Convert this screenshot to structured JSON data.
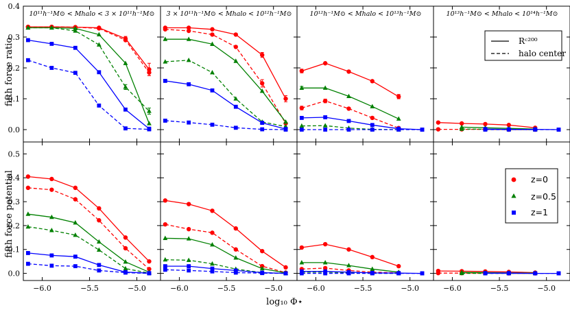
{
  "figure": {
    "xlabel": "log₁₀ Φ⋆",
    "row_ylabels": [
      "fifth force ratio",
      "fifth force potential"
    ],
    "column_titles": [
      "10¹¹h⁻¹M⊙ < Mhalo < 3 × 10¹¹h⁻¹M⊙",
      "3 × 10¹¹h⁻¹M⊙ < Mhalo < 10¹²h⁻¹M⊙",
      "10¹²h⁻¹M⊙ < Mhalo < 10¹³h⁻¹M⊙",
      "10¹³h⁻¹M⊙ < Mhalo < 10¹⁴h⁻¹M⊙"
    ],
    "x_ticks": [
      "−6.0",
      "−5.5",
      "−5.0"
    ],
    "x_tick_values": [
      -6.0,
      -5.5,
      -5.0
    ],
    "top_y_ticks": [
      "0.0",
      "0.1",
      "0.2",
      "0.3",
      "0.4"
    ],
    "top_y_tick_values": [
      0.0,
      0.1,
      0.2,
      0.3,
      0.4
    ],
    "bottom_y_ticks": [
      "0.0",
      "0.1",
      "0.2",
      "0.3",
      "0.4",
      "0.5"
    ],
    "bottom_y_tick_values": [
      0.0,
      0.1,
      0.2,
      0.3,
      0.4,
      0.5
    ],
    "legend_linestyle": [
      {
        "label": "Rᶜ²⁰⁰",
        "style": "solid"
      },
      {
        "label": "halo center",
        "style": "dashed"
      }
    ],
    "legend_redshift": [
      {
        "label": "z=0",
        "color": "#ff0000",
        "marker": "circle"
      },
      {
        "label": "z=0.5",
        "color": "#008000",
        "marker": "triangle"
      },
      {
        "label": "z=1",
        "color": "#0000ff",
        "marker": "square"
      }
    ]
  },
  "chart_data": {
    "type": "line",
    "layout": {
      "rows": 2,
      "cols": 4
    },
    "xlim": [
      -6.2,
      -4.75
    ],
    "x": [
      -6.15,
      -5.9,
      -5.65,
      -5.4,
      -5.12,
      -4.87
    ],
    "colors": {
      "z=0": "#ff0000",
      "z=0.5": "#008000",
      "z=1": "#0000ff"
    },
    "panels": [
      {
        "row": 0,
        "col": 0,
        "ylabel": "fifth force ratio",
        "ylim": [
          -0.04,
          0.4
        ],
        "series": [
          {
            "z": "z=0",
            "style": "solid",
            "values": [
              0.333,
              0.333,
              0.332,
              0.33,
              0.295,
              0.195
            ],
            "errors": [
              0,
              0,
              0,
              0,
              0.007,
              0.02
            ]
          },
          {
            "z": "z=0",
            "style": "dashed",
            "values": [
              0.333,
              0.333,
              0.332,
              0.328,
              0.29,
              0.185
            ],
            "errors": [
              0,
              0,
              0,
              0,
              0,
              0.01
            ]
          },
          {
            "z": "z=0.5",
            "style": "solid",
            "values": [
              0.33,
              0.33,
              0.328,
              0.308,
              0.215,
              0.02
            ],
            "errors": [
              0,
              0,
              0,
              0,
              0,
              0
            ]
          },
          {
            "z": "z=0.5",
            "style": "dashed",
            "values": [
              0.33,
              0.33,
              0.32,
              0.275,
              0.138,
              0.06
            ],
            "errors": [
              0,
              0,
              0,
              0,
              0.008,
              0.01
            ]
          },
          {
            "z": "z=1",
            "style": "solid",
            "values": [
              0.29,
              0.278,
              0.265,
              0.186,
              0.065,
              0.003
            ],
            "errors": [
              0,
              0,
              0,
              0,
              0,
              0
            ]
          },
          {
            "z": "z=1",
            "style": "dashed",
            "values": [
              0.225,
              0.2,
              0.184,
              0.078,
              0.004,
              0.001
            ],
            "errors": [
              0,
              0,
              0,
              0,
              0,
              0
            ]
          }
        ]
      },
      {
        "row": 0,
        "col": 1,
        "ylim": [
          -0.04,
          0.4
        ],
        "series": [
          {
            "z": "z=0",
            "style": "solid",
            "values": [
              0.33,
              0.33,
              0.325,
              0.308,
              0.242,
              0.1
            ],
            "errors": [
              0,
              0,
              0,
              0,
              0.008,
              0.01
            ]
          },
          {
            "z": "z=0",
            "style": "dashed",
            "values": [
              0.325,
              0.32,
              0.308,
              0.268,
              0.15,
              0.02
            ],
            "errors": [
              0,
              0,
              0,
              0,
              0.012,
              0
            ]
          },
          {
            "z": "z=0.5",
            "style": "solid",
            "values": [
              0.293,
              0.293,
              0.277,
              0.222,
              0.125,
              0.025
            ],
            "errors": [
              0,
              0,
              0,
              0,
              0,
              0
            ]
          },
          {
            "z": "z=0.5",
            "style": "dashed",
            "values": [
              0.22,
              0.225,
              0.185,
              0.1,
              0.025,
              0.01
            ],
            "errors": [
              0,
              0,
              0,
              0,
              0,
              0
            ]
          },
          {
            "z": "z=1",
            "style": "solid",
            "values": [
              0.158,
              0.147,
              0.127,
              0.074,
              0.022,
              0.002
            ],
            "errors": [
              0,
              0,
              0,
              0,
              0,
              0
            ]
          },
          {
            "z": "z=1",
            "style": "dashed",
            "values": [
              0.029,
              0.023,
              0.016,
              0.006,
              0.001,
              0.0
            ],
            "errors": [
              0,
              0,
              0,
              0,
              0,
              0
            ]
          }
        ]
      },
      {
        "row": 0,
        "col": 2,
        "ylim": [
          -0.04,
          0.4
        ],
        "series": [
          {
            "z": "z=0",
            "style": "solid",
            "values": [
              0.19,
              0.215,
              0.188,
              0.157,
              0.107
            ],
            "errors": [
              0.006,
              0,
              0,
              0,
              0.007
            ]
          },
          {
            "z": "z=0",
            "style": "dashed",
            "values": [
              0.07,
              0.093,
              0.068,
              0.038,
              0.005
            ],
            "errors": [
              0.006,
              0.006,
              0,
              0,
              0
            ]
          },
          {
            "z": "z=0.5",
            "style": "solid",
            "values": [
              0.135,
              0.135,
              0.108,
              0.075,
              0.035
            ],
            "errors": [
              0.005,
              0,
              0,
              0,
              0
            ]
          },
          {
            "z": "z=0.5",
            "style": "dashed",
            "values": [
              0.012,
              0.013,
              0.005,
              0.001,
              0.0
            ],
            "errors": [
              0,
              0,
              0,
              0,
              0
            ]
          },
          {
            "z": "z=1",
            "style": "solid",
            "values": [
              0.038,
              0.04,
              0.028,
              0.015,
              0.003,
              0.0
            ],
            "errors": [
              0,
              0,
              0,
              0,
              0,
              0
            ]
          },
          {
            "z": "z=1",
            "style": "dashed",
            "values": [
              0.0,
              0.0,
              0.0,
              0.0,
              0.0,
              0.0
            ],
            "errors": [
              0,
              0,
              0,
              0,
              0,
              0
            ]
          }
        ]
      },
      {
        "row": 0,
        "col": 3,
        "ylim": [
          -0.04,
          0.4
        ],
        "series": [
          {
            "z": "z=0",
            "style": "solid",
            "values": [
              0.023,
              0.02,
              0.018,
              0.015,
              0.006
            ],
            "errors": [
              0,
              0,
              0,
              0,
              0
            ]
          },
          {
            "z": "z=0",
            "style": "dashed",
            "values": [
              0.001,
              0.001,
              0.001,
              0.0,
              0.0
            ],
            "errors": [
              0,
              0,
              0,
              0,
              0
            ]
          },
          {
            "z": "z=0.5",
            "style": "solid",
            "values": [
              null,
              0.008,
              0.006,
              0.004,
              0.002
            ],
            "errors": [
              0,
              0,
              0,
              0,
              0
            ]
          },
          {
            "z": "z=0.5",
            "style": "dashed",
            "values": [
              null,
              0.002,
              0.001,
              0.001,
              0.0
            ],
            "errors": [
              0,
              0,
              0,
              0,
              0
            ]
          },
          {
            "z": "z=1",
            "style": "solid",
            "values": [
              null,
              null,
              0.002,
              0.001,
              0.001,
              0.0
            ],
            "errors": [
              0,
              0,
              0,
              0,
              0,
              0
            ]
          },
          {
            "z": "z=1",
            "style": "dashed",
            "values": [
              null,
              null,
              0.0,
              0.0,
              0.0,
              0.0
            ],
            "errors": [
              0,
              0,
              0,
              0,
              0,
              0
            ]
          }
        ]
      },
      {
        "row": 1,
        "col": 0,
        "ylabel": "fifth force potential",
        "ylim": [
          -0.03,
          0.55
        ],
        "series": [
          {
            "z": "z=0",
            "style": "solid",
            "values": [
              0.405,
              0.395,
              0.358,
              0.272,
              0.15,
              0.05
            ]
          },
          {
            "z": "z=0",
            "style": "dashed",
            "values": [
              0.358,
              0.35,
              0.31,
              0.222,
              0.105,
              0.018
            ]
          },
          {
            "z": "z=0.5",
            "style": "solid",
            "values": [
              0.248,
              0.235,
              0.212,
              0.132,
              0.048,
              0.005
            ]
          },
          {
            "z": "z=0.5",
            "style": "dashed",
            "values": [
              0.195,
              0.18,
              0.16,
              0.098,
              0.02,
              0.001
            ]
          },
          {
            "z": "z=1",
            "style": "solid",
            "values": [
              0.085,
              0.075,
              0.07,
              0.035,
              0.005,
              0.001
            ]
          },
          {
            "z": "z=1",
            "style": "dashed",
            "values": [
              0.04,
              0.032,
              0.03,
              0.012,
              0.003,
              0.0
            ]
          }
        ]
      },
      {
        "row": 1,
        "col": 1,
        "ylim": [
          -0.03,
          0.55
        ],
        "series": [
          {
            "z": "z=0",
            "style": "solid",
            "values": [
              0.305,
              0.29,
              0.262,
              0.188,
              0.093,
              0.025
            ]
          },
          {
            "z": "z=0",
            "style": "dashed",
            "values": [
              0.205,
              0.185,
              0.17,
              0.1,
              0.03,
              0.003
            ]
          },
          {
            "z": "z=0.5",
            "style": "solid",
            "values": [
              0.147,
              0.145,
              0.12,
              0.065,
              0.02,
              0.002
            ]
          },
          {
            "z": "z=0.5",
            "style": "dashed",
            "values": [
              0.057,
              0.055,
              0.04,
              0.018,
              0.003,
              0.0
            ]
          },
          {
            "z": "z=1",
            "style": "solid",
            "values": [
              0.03,
              0.03,
              0.02,
              0.012,
              0.003,
              0.0
            ]
          },
          {
            "z": "z=1",
            "style": "dashed",
            "values": [
              0.015,
              0.012,
              0.008,
              0.003,
              0.001,
              0.0
            ]
          }
        ]
      },
      {
        "row": 1,
        "col": 2,
        "ylim": [
          -0.03,
          0.55
        ],
        "series": [
          {
            "z": "z=0",
            "style": "solid",
            "values": [
              0.108,
              0.122,
              0.1,
              0.068,
              0.03
            ]
          },
          {
            "z": "z=0",
            "style": "dashed",
            "values": [
              0.018,
              0.022,
              0.012,
              0.005,
              0.002
            ]
          },
          {
            "z": "z=0.5",
            "style": "solid",
            "values": [
              0.045,
              0.045,
              0.033,
              0.018,
              0.005
            ]
          },
          {
            "z": "z=0.5",
            "style": "dashed",
            "values": [
              0.005,
              0.005,
              0.003,
              0.001,
              0.0
            ]
          },
          {
            "z": "z=1",
            "style": "solid",
            "values": [
              0.008,
              0.008,
              0.005,
              0.002,
              0.001,
              0.0
            ]
          },
          {
            "z": "z=1",
            "style": "dashed",
            "values": [
              0.0,
              0.0,
              0.0,
              0.0,
              0.0,
              0.0
            ]
          }
        ]
      },
      {
        "row": 1,
        "col": 3,
        "ylim": [
          -0.03,
          0.55
        ],
        "series": [
          {
            "z": "z=0",
            "style": "solid",
            "values": [
              0.01,
              0.009,
              0.008,
              0.006,
              0.003
            ]
          },
          {
            "z": "z=0",
            "style": "dashed",
            "values": [
              0.001,
              0.001,
              0.001,
              0.0,
              0.0
            ]
          },
          {
            "z": "z=0.5",
            "style": "solid",
            "values": [
              null,
              0.004,
              0.003,
              0.002,
              0.001
            ]
          },
          {
            "z": "z=0.5",
            "style": "dashed",
            "values": [
              null,
              0.0,
              0.0,
              0.0,
              0.0
            ]
          },
          {
            "z": "z=1",
            "style": "solid",
            "values": [
              null,
              null,
              0.001,
              0.001,
              0.0,
              0.0
            ]
          },
          {
            "z": "z=1",
            "style": "dashed",
            "values": [
              null,
              null,
              0.0,
              0.0,
              0.0,
              0.0
            ]
          }
        ]
      }
    ]
  }
}
